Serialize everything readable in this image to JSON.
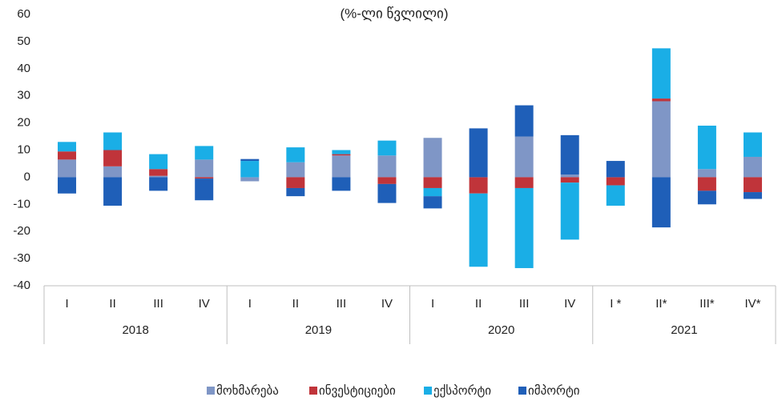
{
  "chart_data": {
    "type": "stacked_bar",
    "subtitle": "(%-ლი წვლილი)",
    "categories": [
      "I",
      "II",
      "III",
      "IV",
      "I",
      "II",
      "III",
      "IV",
      "I",
      "II",
      "III",
      "IV",
      "I *",
      "II*",
      "III*",
      "IV*"
    ],
    "groups": [
      "2018",
      "2019",
      "2020",
      "2021"
    ],
    "series": [
      {
        "name": "მოხმარება",
        "color": "#7f96c6",
        "values": [
          6.5,
          4,
          0.5,
          6.5,
          -1.5,
          5.5,
          8,
          8,
          14.5,
          0,
          15,
          1,
          0,
          28,
          3,
          7.5
        ]
      },
      {
        "name": "ინვესტიციები",
        "color": "#c0343a",
        "values": [
          3,
          6,
          2.5,
          -0.5,
          0,
          -4,
          0.5,
          -2.5,
          -4,
          -6,
          -4,
          -2,
          -3,
          1,
          -5,
          -5.5
        ]
      },
      {
        "name": "ექსპორტი",
        "color": "#1aaee6",
        "values": [
          3.5,
          6.5,
          5.5,
          5,
          6,
          5.5,
          1.5,
          5.5,
          -3,
          -27,
          -29.5,
          -21,
          -7.5,
          18.5,
          16,
          9
        ]
      },
      {
        "name": "იმპორტი",
        "color": "#1f5fb8",
        "values": [
          -6,
          -10.5,
          -5,
          -8,
          0.7,
          -3,
          -5,
          -7,
          -4.5,
          18,
          11.5,
          14.5,
          6,
          -18.5,
          -5,
          -2.5
        ]
      }
    ],
    "ylim": [
      -40,
      60
    ],
    "yticks": [
      -40,
      -30,
      -20,
      -10,
      0,
      10,
      20,
      30,
      40,
      50,
      60
    ]
  }
}
